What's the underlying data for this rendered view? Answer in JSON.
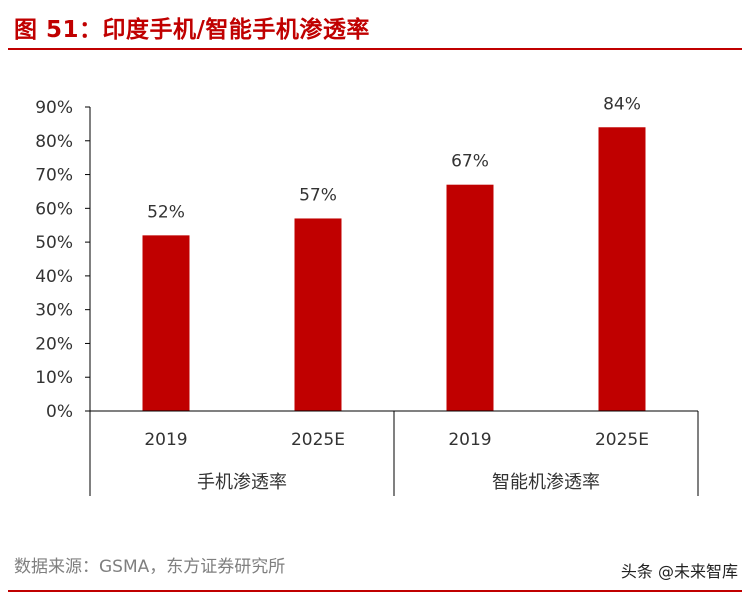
{
  "header": {
    "title": "图 51：印度手机/智能手机渗透率"
  },
  "footer": {
    "source": "数据来源：GSMA，东方证券研究所",
    "watermark": "头条 @未来智库"
  },
  "colors": {
    "accent": "#c00000",
    "bar": "#c00000"
  },
  "chart_data": {
    "type": "bar",
    "categories": [
      "2019",
      "2025E",
      "2019",
      "2025E"
    ],
    "groups": [
      {
        "label": "手机渗透率",
        "categories": [
          "2019",
          "2025E"
        ]
      },
      {
        "label": "智能机渗透率",
        "categories": [
          "2019",
          "2025E"
        ]
      }
    ],
    "values": [
      52,
      57,
      67,
      84
    ],
    "data_labels": [
      "52%",
      "57%",
      "67%",
      "84%"
    ],
    "yticks": [
      "0%",
      "10%",
      "20%",
      "30%",
      "40%",
      "50%",
      "60%",
      "70%",
      "80%",
      "90%"
    ],
    "ylim": [
      0,
      90
    ],
    "grid": false,
    "legend": "none"
  }
}
